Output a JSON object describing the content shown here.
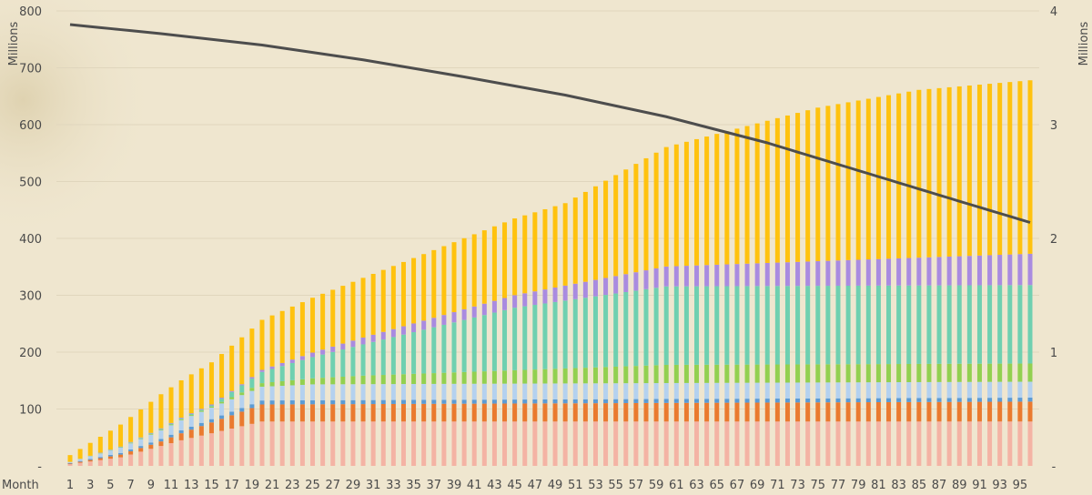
{
  "chart_data": {
    "type": "bar",
    "stacked": true,
    "x_axis_label": "Month",
    "left_axis_unit": "Millions",
    "right_axis_unit": "Millions",
    "left_ylim": [
      0,
      800
    ],
    "right_ylim": [
      0,
      4
    ],
    "left_tick_labels": [
      "-",
      "100",
      "200",
      "300",
      "400",
      "500",
      "600",
      "700",
      "800"
    ],
    "right_tick_labels": [
      "-",
      "1",
      "2",
      "3",
      "4"
    ],
    "months": 96,
    "x_tick_labels": [
      "1",
      "3",
      "5",
      "7",
      "9",
      "11",
      "13",
      "15",
      "17",
      "19",
      "21",
      "23",
      "25",
      "27",
      "29",
      "31",
      "33",
      "35",
      "37",
      "39",
      "41",
      "43",
      "45",
      "47",
      "49",
      "51",
      "53",
      "55",
      "57",
      "59",
      "61",
      "63",
      "65",
      "67",
      "69",
      "71",
      "73",
      "75",
      "77",
      "79",
      "81",
      "83",
      "85",
      "87",
      "89",
      "91",
      "93",
      "95"
    ],
    "grid": true,
    "legend": "none",
    "series": [
      {
        "color": "#f4b3a4",
        "anchors": [
          [
            1,
            3
          ],
          [
            6,
            15
          ],
          [
            12,
            45
          ],
          [
            20,
            78
          ],
          [
            96,
            78
          ]
        ]
      },
      {
        "color": "#ea7a2f",
        "anchors": [
          [
            1,
            1
          ],
          [
            10,
            8
          ],
          [
            20,
            30
          ],
          [
            96,
            35
          ]
        ]
      },
      {
        "color": "#5b9bd5",
        "anchors": [
          [
            1,
            1
          ],
          [
            12,
            5
          ],
          [
            20,
            7
          ],
          [
            96,
            7
          ]
        ]
      },
      {
        "color": "#b4d1ef",
        "anchors": [
          [
            1,
            2
          ],
          [
            12,
            18
          ],
          [
            25,
            28
          ],
          [
            96,
            28
          ]
        ]
      },
      {
        "color": "#92d050",
        "anchors": [
          [
            1,
            0
          ],
          [
            15,
            2
          ],
          [
            30,
            15
          ],
          [
            60,
            32
          ],
          [
            96,
            32
          ]
        ]
      },
      {
        "color": "#6fd0b0",
        "anchors": [
          [
            1,
            0
          ],
          [
            15,
            2
          ],
          [
            30,
            55
          ],
          [
            45,
            110
          ],
          [
            60,
            138
          ],
          [
            96,
            138
          ]
        ]
      },
      {
        "color": "#a98be0",
        "anchors": [
          [
            1,
            0
          ],
          [
            18,
            2
          ],
          [
            30,
            12
          ],
          [
            45,
            22
          ],
          [
            60,
            35
          ],
          [
            96,
            55
          ]
        ]
      },
      {
        "color": "#ffc20e",
        "anchors": [
          [
            1,
            12
          ],
          [
            10,
            60
          ],
          [
            20,
            88
          ],
          [
            30,
            105
          ],
          [
            40,
            125
          ],
          [
            50,
            145
          ],
          [
            60,
            210
          ],
          [
            75,
            270
          ],
          [
            85,
            295
          ],
          [
            96,
            305
          ]
        ]
      }
    ],
    "line_series": {
      "axis": "right",
      "color": "#4d4d4d",
      "anchors": [
        [
          1,
          3.88
        ],
        [
          10,
          3.8
        ],
        [
          20,
          3.7
        ],
        [
          30,
          3.57
        ],
        [
          40,
          3.42
        ],
        [
          50,
          3.26
        ],
        [
          60,
          3.07
        ],
        [
          70,
          2.84
        ],
        [
          80,
          2.57
        ],
        [
          90,
          2.3
        ],
        [
          96,
          2.14
        ]
      ]
    }
  }
}
